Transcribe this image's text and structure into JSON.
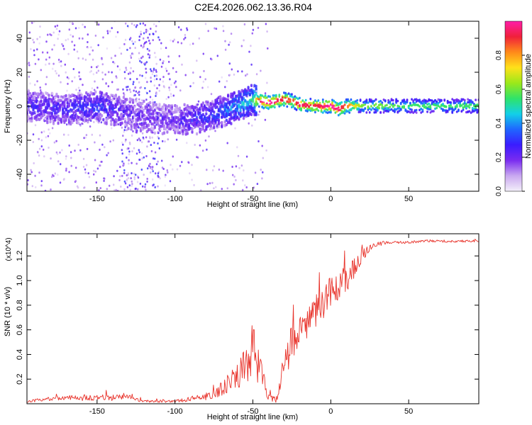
{
  "figure": {
    "title": "C2E4.2026.062.13.36.R04"
  },
  "colors": {
    "snr_line": "#e8322a",
    "axes": "#000000",
    "colormap": [
      "#f4f0fa",
      "#c9a8f0",
      "#7a2cf0",
      "#3a1cff",
      "#1f66ff",
      "#12d0e8",
      "#2fe36a",
      "#9be81a",
      "#ffe11a",
      "#ff8a1a",
      "#f0203a",
      "#ff1ea8"
    ]
  },
  "chart_data": [
    {
      "type": "heatmap",
      "name": "spectrogram",
      "xlabel": "Height of straight line (km)",
      "ylabel": "Frequency (Hz)",
      "xlim": [
        -195,
        95
      ],
      "ylim": [
        -50,
        50
      ],
      "xticks": [
        -150,
        -100,
        -50,
        0,
        50
      ],
      "yticks": [
        -40,
        -20,
        0,
        20,
        40
      ],
      "colorbar": {
        "label": "Normalized spectral amplitude",
        "range": [
          0.0,
          1.0
        ],
        "ticks": [
          "0.0",
          "0.2",
          "0.4",
          "0.6",
          "0.8"
        ],
        "tick_values": [
          0.0,
          0.2,
          0.4,
          0.6,
          0.8
        ]
      },
      "signal_ridge": {
        "x": [
          -195,
          -170,
          -150,
          -130,
          -120,
          -100,
          -90,
          -80,
          -70,
          -60,
          -50,
          -45,
          -40,
          -35,
          -30,
          -25,
          -20,
          -10,
          0,
          5,
          10,
          20,
          30,
          50,
          70,
          95
        ],
        "freq_center": [
          0,
          -2,
          0,
          -4,
          -6,
          -8,
          -8,
          -6,
          -3,
          0,
          4,
          3,
          2,
          3,
          4,
          3,
          1,
          0,
          0,
          -2,
          0,
          0,
          0,
          0,
          0,
          0
        ],
        "amplitude": [
          0.25,
          0.25,
          0.3,
          0.2,
          0.18,
          0.2,
          0.25,
          0.3,
          0.35,
          0.4,
          0.5,
          0.9,
          0.95,
          0.9,
          0.85,
          0.8,
          0.9,
          0.85,
          0.95,
          0.9,
          0.8,
          0.55,
          0.55,
          0.5,
          0.5,
          0.5
        ]
      }
    },
    {
      "type": "line",
      "name": "snr",
      "xlabel": "Height of straight line (km)",
      "ylabel": "SNR (10 * v/v)",
      "y_multiplier": "(x10^4)",
      "xlim": [
        -195,
        95
      ],
      "ylim": [
        0,
        1.38
      ],
      "xticks": [
        -150,
        -100,
        -50,
        0,
        50
      ],
      "yticks": [
        0.2,
        0.4,
        0.6,
        0.8,
        1.0,
        1.2
      ],
      "envelope_x": [
        -195,
        -180,
        -160,
        -140,
        -130,
        -120,
        -100,
        -90,
        -80,
        -70,
        -60,
        -55,
        -50,
        -45,
        -40,
        -35,
        -30,
        -25,
        -20,
        -15,
        -10,
        -5,
        0,
        5,
        10,
        15,
        20,
        25,
        30,
        40,
        50,
        60,
        70,
        80,
        95
      ],
      "envelope_y": [
        0.02,
        0.04,
        0.05,
        0.05,
        0.05,
        0.02,
        0.02,
        0.04,
        0.06,
        0.12,
        0.22,
        0.3,
        0.45,
        0.25,
        0.05,
        0.03,
        0.3,
        0.5,
        0.6,
        0.65,
        0.75,
        0.8,
        0.92,
        0.95,
        1.0,
        1.1,
        1.2,
        1.27,
        1.3,
        1.31,
        1.31,
        1.32,
        1.32,
        1.32,
        1.32
      ],
      "noise_amplitude": [
        0.01,
        0.015,
        0.025,
        0.025,
        0.02,
        0.01,
        0.01,
        0.02,
        0.03,
        0.06,
        0.1,
        0.15,
        0.22,
        0.12,
        0.03,
        0.02,
        0.12,
        0.15,
        0.12,
        0.12,
        0.13,
        0.12,
        0.12,
        0.12,
        0.12,
        0.08,
        0.05,
        0.03,
        0.02,
        0.01,
        0.01,
        0.01,
        0.01,
        0.01,
        0.01
      ]
    }
  ]
}
